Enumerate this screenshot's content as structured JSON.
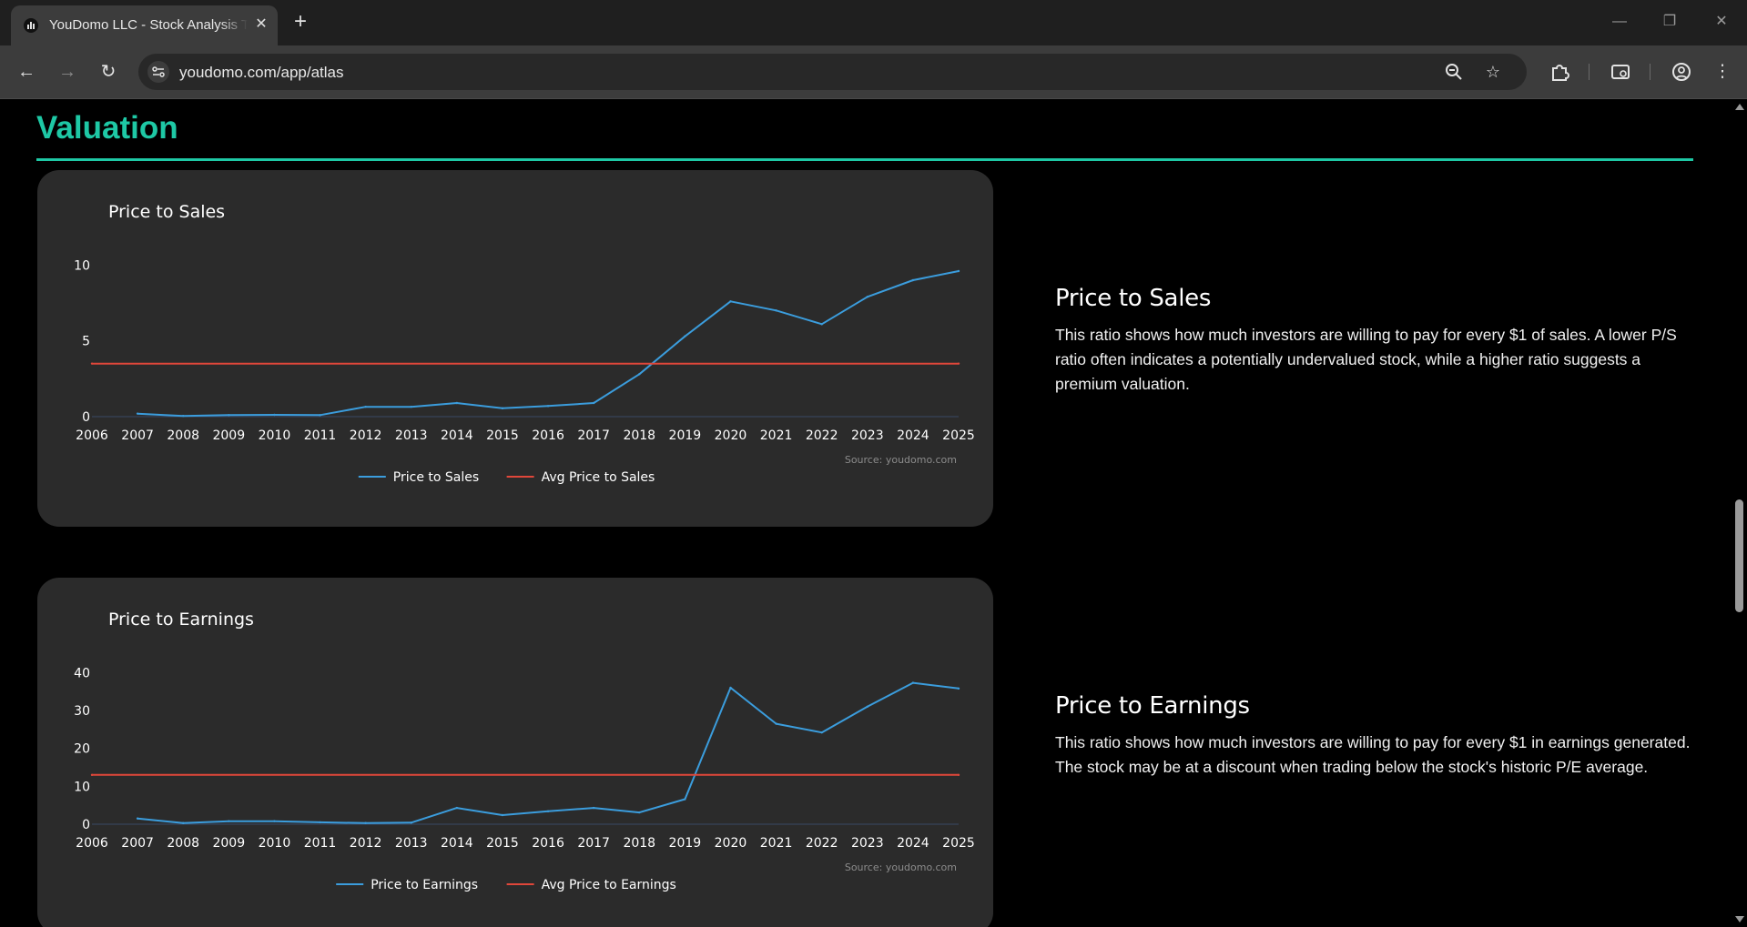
{
  "browser": {
    "tab_title": "YouDomo LLC - Stock Analysis Tool",
    "tab_close": "✕",
    "new_tab": "+",
    "url": "youdomo.com/app/atlas",
    "nav": {
      "back": "←",
      "forward": "→",
      "reload": "↻"
    },
    "window_controls": {
      "minimize": "—",
      "restore": "❐",
      "close": "✕"
    }
  },
  "section": {
    "title": "Valuation"
  },
  "charts": [
    {
      "title": "Price to Sales",
      "source": "Source: youdomo.com",
      "legend": [
        "Price to Sales",
        "Avg Price to Sales"
      ],
      "description_title": "Price to Sales",
      "description": "This ratio shows how much investors are willing to pay for every $1 of sales. A lower P/S ratio often indicates a potentially undervalued stock, while a higher ratio suggests a premium valuation."
    },
    {
      "title": "Price to Earnings",
      "source": "Source: youdomo.com",
      "legend": [
        "Price to Earnings",
        "Avg Price to Earnings"
      ],
      "description_title": "Price to Earnings",
      "description": "This ratio shows how much investors are willing to pay for every $1 in earnings generated. The stock may be at a discount when trading below the stock's historic P/E average."
    }
  ],
  "colors": {
    "accent": "#1ec8a5",
    "series": "#3b9ddd",
    "average": "#e0473a",
    "card": "#2b2b2b"
  },
  "chart_data": [
    {
      "type": "line",
      "title": "Price to Sales",
      "xlim": [
        2006,
        2025
      ],
      "ylim": [
        0,
        10.5
      ],
      "x_ticks": [
        2006,
        2007,
        2008,
        2009,
        2010,
        2011,
        2012,
        2013,
        2014,
        2015,
        2016,
        2017,
        2018,
        2019,
        2020,
        2021,
        2022,
        2023,
        2024,
        2025
      ],
      "y_ticks": [
        0,
        5,
        10
      ],
      "series": [
        {
          "name": "Price to Sales",
          "color": "#3b9ddd",
          "x": [
            2007,
            2008,
            2009,
            2010,
            2011,
            2012,
            2013,
            2014,
            2015,
            2016,
            2017,
            2018,
            2019,
            2020,
            2021,
            2022,
            2023,
            2024,
            2025
          ],
          "values": [
            0.2,
            0.05,
            0.1,
            0.12,
            0.1,
            0.65,
            0.65,
            0.9,
            0.55,
            0.7,
            0.9,
            2.8,
            5.3,
            7.6,
            7.0,
            6.1,
            7.9,
            9.0,
            9.6
          ]
        },
        {
          "name": "Avg Price to Sales",
          "color": "#e0473a",
          "x": [
            2006,
            2025
          ],
          "values": [
            3.5,
            3.5
          ]
        }
      ],
      "legend": "bottom-center",
      "grid": false
    },
    {
      "type": "line",
      "title": "Price to Earnings",
      "xlim": [
        2006,
        2025
      ],
      "ylim": [
        0,
        42
      ],
      "x_ticks": [
        2006,
        2007,
        2008,
        2009,
        2010,
        2011,
        2012,
        2013,
        2014,
        2015,
        2016,
        2017,
        2018,
        2019,
        2020,
        2021,
        2022,
        2023,
        2024,
        2025
      ],
      "y_ticks": [
        0,
        10,
        20,
        30,
        40
      ],
      "series": [
        {
          "name": "Price to Earnings",
          "color": "#3b9ddd",
          "x": [
            2007,
            2008,
            2009,
            2010,
            2011,
            2012,
            2013,
            2014,
            2015,
            2016,
            2017,
            2018,
            2019,
            2020,
            2021,
            2022,
            2023,
            2024,
            2025
          ],
          "values": [
            1.5,
            0.3,
            0.8,
            0.8,
            0.5,
            0.3,
            0.4,
            4.3,
            2.4,
            3.4,
            4.3,
            3.1,
            6.6,
            36.0,
            26.5,
            24.2,
            31.0,
            37.3,
            35.8
          ]
        },
        {
          "name": "Avg Price to Earnings",
          "color": "#e0473a",
          "x": [
            2006,
            2025
          ],
          "values": [
            13.0,
            13.0
          ]
        }
      ],
      "legend": "bottom-center",
      "grid": false
    }
  ]
}
